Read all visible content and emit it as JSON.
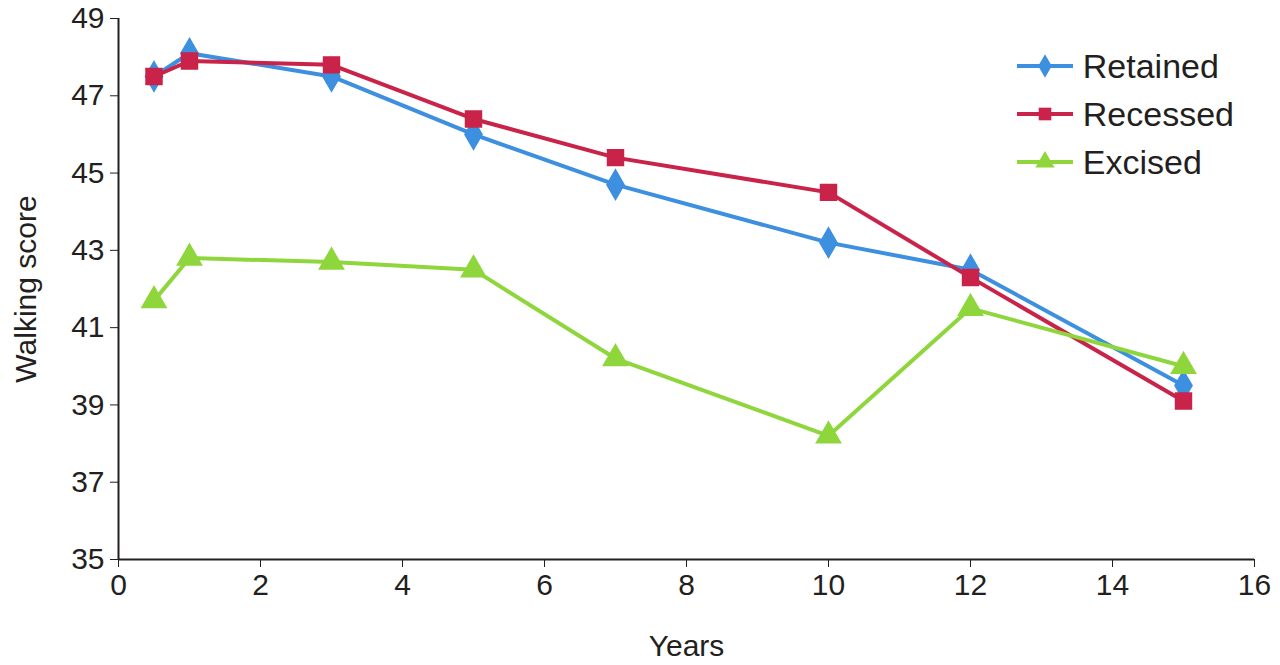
{
  "chart_data": {
    "type": "line",
    "x_label": "Years",
    "y_label": "Walking score",
    "x": [
      0.5,
      1,
      3,
      5,
      7,
      10,
      12,
      15
    ],
    "series": [
      {
        "name": "Retained",
        "color": "#3d8fe0",
        "marker": "diamond",
        "values": [
          47.5,
          48.1,
          47.5,
          46.0,
          44.7,
          43.2,
          42.5,
          39.5
        ]
      },
      {
        "name": "Recessed",
        "color": "#c9234a",
        "marker": "square",
        "values": [
          47.5,
          47.9,
          47.8,
          46.4,
          45.4,
          44.5,
          42.3,
          39.1
        ]
      },
      {
        "name": "Excised",
        "color": "#8ed63c",
        "marker": "triangle",
        "values": [
          41.7,
          42.8,
          42.7,
          42.5,
          40.2,
          38.2,
          41.5,
          40.0
        ]
      }
    ],
    "xlim": [
      0,
      16
    ],
    "xticks": [
      0,
      2,
      4,
      6,
      8,
      10,
      12,
      14,
      16
    ],
    "ylim": [
      35,
      49
    ],
    "yticks": [
      35,
      37,
      39,
      41,
      43,
      45,
      47,
      49
    ],
    "grid": false,
    "legend": "top-right"
  }
}
